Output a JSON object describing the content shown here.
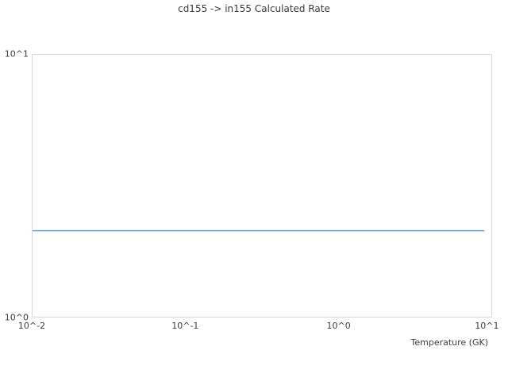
{
  "colors": {
    "line": "#5ea6dc",
    "plot_border": "#d9d9d9",
    "text": "#3d3d3d"
  },
  "chart_data": {
    "type": "line",
    "title": "cd155 -> in155 Calculated Rate",
    "xlabel": "Temperature (GK)",
    "ylabel": "",
    "log_x": true,
    "log_y": true,
    "x_range": [
      0.01,
      10
    ],
    "y_range": [
      1,
      10
    ],
    "x_ticks": [
      {
        "label": "10^-2",
        "value": 0.01
      },
      {
        "label": "10^-1",
        "value": 0.1
      },
      {
        "label": "10^0",
        "value": 1
      },
      {
        "label": "10^1",
        "value": 10
      }
    ],
    "y_ticks": [
      {
        "label": "10^0",
        "value": 1
      },
      {
        "label": "10^1",
        "value": 10
      }
    ],
    "grid": false,
    "legend": "none",
    "series": [
      {
        "name": "calculated-rate",
        "color": "#5ea6dc",
        "x": [
          0.01,
          9
        ],
        "y": [
          2.13,
          2.13
        ]
      }
    ]
  }
}
